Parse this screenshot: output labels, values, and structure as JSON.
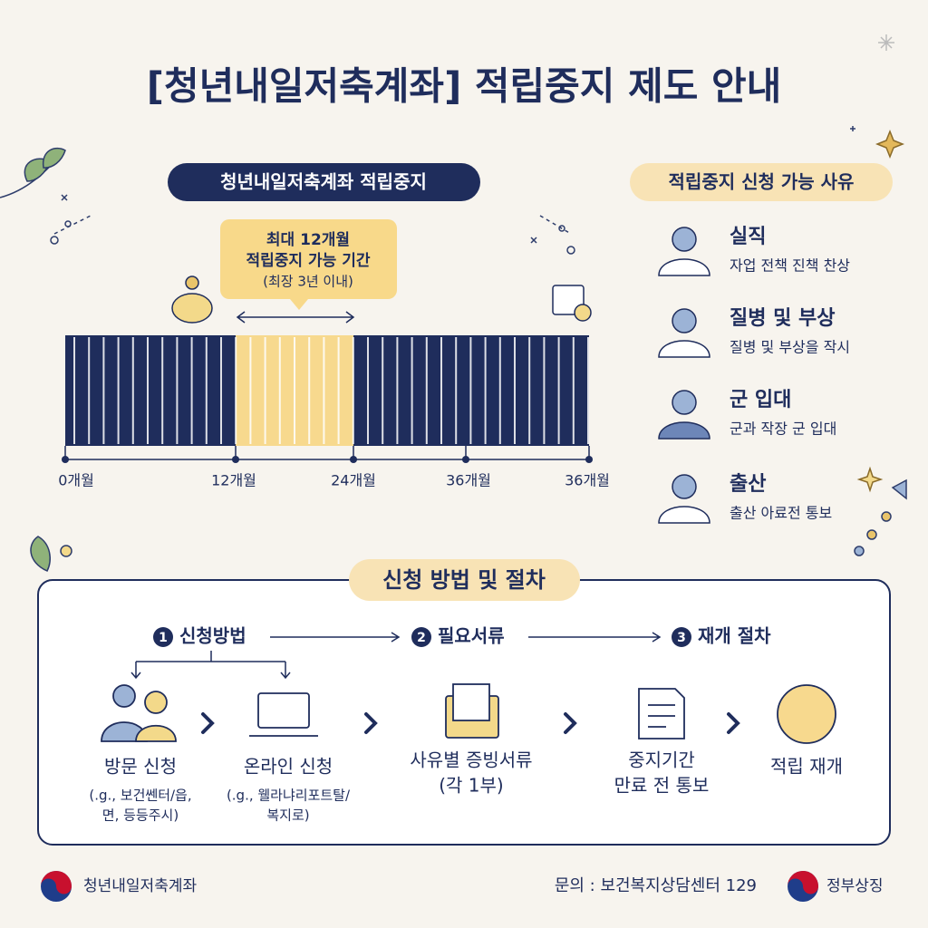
{
  "title": "[청년내일저축계좌] 적립중지 제도 안내",
  "timeline": {
    "heading": "청년내일저축계좌 적립중지",
    "callout": [
      "최대 12개월",
      "적립중지 가능 기간",
      "(최장 3년 이내)"
    ],
    "labels": [
      "0개월",
      "12개월",
      "24개월",
      "36개월",
      "36개월"
    ]
  },
  "reasons": {
    "heading": "적립중지 신청 가능 사유",
    "items": [
      {
        "title": "실직",
        "desc": "자업 전책 진책 찬상"
      },
      {
        "title": "질병 및 부상",
        "desc": "질병 및 부상을 작시"
      },
      {
        "title": "군 입대",
        "desc": "군과 작장 군 입대"
      },
      {
        "title": "출산",
        "desc": "출산 아료전 통보"
      }
    ]
  },
  "procedure": {
    "heading": "신청 방법 및 절차",
    "steps": [
      {
        "number": "1",
        "label": "신청방법"
      },
      {
        "number": "2",
        "label": "필요서류"
      },
      {
        "number": "3",
        "label": "재개 절차"
      }
    ],
    "items": [
      {
        "lines": [
          "방문 신청"
        ],
        "notes": [
          "(.g., 보건쎈터/읍,",
          "면, 등등주시)"
        ]
      },
      {
        "lines": [
          "온라인 신청"
        ],
        "notes": [
          "(.g., 웰라냐리포트탈/",
          "복지로)"
        ]
      },
      {
        "lines": [
          "사유별 증빙서류",
          "(각 1부)"
        ]
      },
      {
        "lines": [
          "중지기간",
          "만료 전 통보"
        ]
      },
      {
        "lines": [
          "적립 재개"
        ]
      }
    ]
  },
  "footer": {
    "left": "청년내일저축계좌",
    "contact": "문의 : 보건복지상담센터 129",
    "right": "정부상징"
  }
}
